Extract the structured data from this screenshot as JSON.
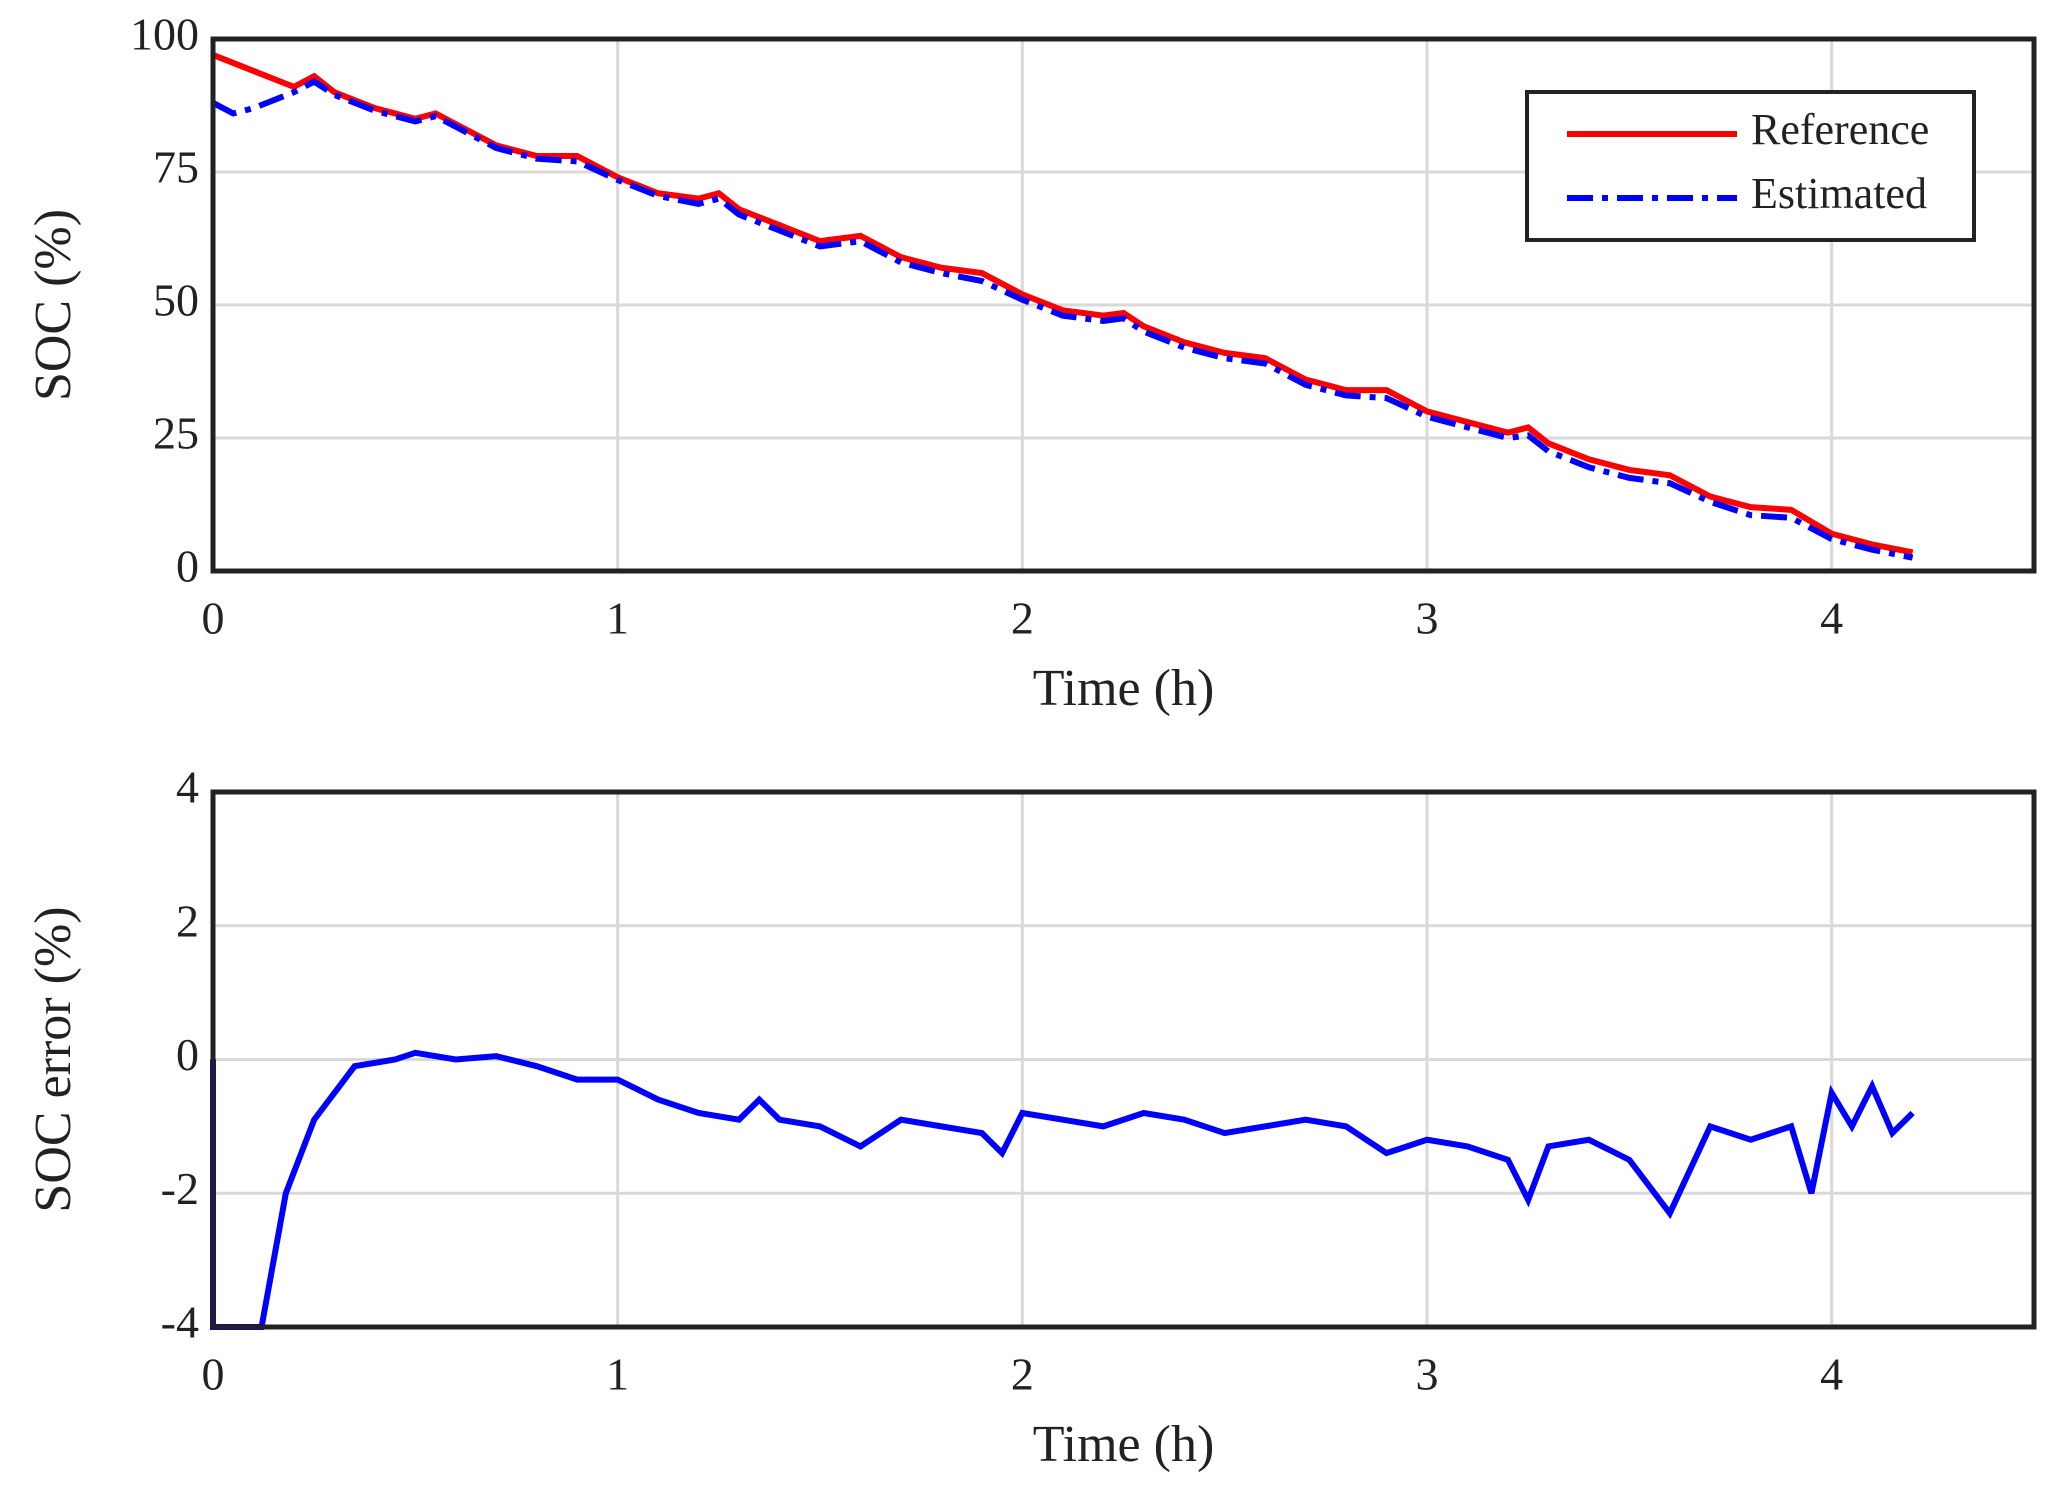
{
  "chart_data": [
    {
      "type": "line",
      "ylabel": "SOC (%)",
      "xlabel": "Time (h)",
      "xlim": [
        0,
        4.5
      ],
      "xticks": [
        0,
        1,
        2,
        3,
        4
      ],
      "ylim": [
        0,
        100
      ],
      "yticks": [
        0,
        25,
        50,
        75,
        100
      ],
      "grid": true,
      "legend": "upper right",
      "series": [
        {
          "name": "Reference",
          "color": "#ff0000",
          "dash": "solid",
          "x": [
            0,
            0.1,
            0.2,
            0.25,
            0.3,
            0.4,
            0.5,
            0.55,
            0.6,
            0.7,
            0.8,
            0.9,
            1.0,
            1.1,
            1.2,
            1.25,
            1.3,
            1.4,
            1.5,
            1.6,
            1.7,
            1.8,
            1.9,
            2.0,
            2.1,
            2.2,
            2.25,
            2.3,
            2.4,
            2.5,
            2.6,
            2.7,
            2.8,
            2.9,
            3.0,
            3.1,
            3.2,
            3.25,
            3.3,
            3.4,
            3.5,
            3.6,
            3.7,
            3.8,
            3.9,
            4.0,
            4.1,
            4.2
          ],
          "values": [
            97,
            94,
            91,
            93,
            90,
            87,
            85,
            86,
            84,
            80,
            78,
            78,
            74,
            71,
            70,
            71,
            68,
            65,
            62,
            63,
            59,
            57,
            56,
            52,
            49,
            48,
            48.5,
            46,
            43,
            41,
            40,
            36,
            34,
            34,
            30,
            28,
            26,
            27,
            24,
            21,
            19,
            18,
            14,
            12,
            11.5,
            7,
            5,
            3.5
          ]
        },
        {
          "name": "Estimated",
          "color": "#0000ff",
          "dash": "dashdot",
          "x": [
            0,
            0.05,
            0.1,
            0.2,
            0.25,
            0.3,
            0.4,
            0.5,
            0.55,
            0.6,
            0.7,
            0.8,
            0.9,
            1.0,
            1.1,
            1.2,
            1.25,
            1.3,
            1.4,
            1.5,
            1.6,
            1.7,
            1.8,
            1.9,
            2.0,
            2.1,
            2.2,
            2.25,
            2.3,
            2.4,
            2.5,
            2.6,
            2.7,
            2.8,
            2.9,
            3.0,
            3.1,
            3.2,
            3.25,
            3.3,
            3.4,
            3.5,
            3.6,
            3.7,
            3.8,
            3.9,
            4.0,
            4.1,
            4.2
          ],
          "values": [
            88,
            86,
            87,
            90,
            92,
            89.5,
            86.5,
            84.5,
            85.5,
            83.5,
            79.5,
            77.5,
            77,
            73.5,
            70.5,
            69,
            70,
            67,
            64,
            61,
            62,
            58,
            56,
            54.5,
            51,
            48,
            47,
            47.5,
            45,
            42,
            40,
            39,
            35,
            33,
            32.5,
            29,
            27,
            25,
            25.5,
            22.5,
            19.5,
            17.5,
            16.5,
            13,
            10.5,
            10,
            6,
            4,
            2.5
          ]
        }
      ]
    },
    {
      "type": "line",
      "ylabel": "SOC error (%)",
      "xlabel": "Time (h)",
      "xlim": [
        0,
        4.5
      ],
      "xticks": [
        0,
        1,
        2,
        3,
        4
      ],
      "ylim": [
        -4,
        4
      ],
      "yticks": [
        -4,
        -2,
        0,
        2,
        4
      ],
      "grid": true,
      "series": [
        {
          "color": "#0000ff",
          "dash": "solid",
          "x": [
            0,
            0,
            0.12,
            0.18,
            0.25,
            0.3,
            0.35,
            0.45,
            0.5,
            0.6,
            0.7,
            0.8,
            0.9,
            1.0,
            1.1,
            1.2,
            1.3,
            1.35,
            1.4,
            1.5,
            1.6,
            1.7,
            1.8,
            1.9,
            1.95,
            2.0,
            2.1,
            2.2,
            2.3,
            2.4,
            2.5,
            2.6,
            2.7,
            2.8,
            2.9,
            3.0,
            3.1,
            3.2,
            3.25,
            3.3,
            3.4,
            3.5,
            3.6,
            3.7,
            3.8,
            3.9,
            3.95,
            4.0,
            4.05,
            4.1,
            4.15,
            4.2
          ],
          "values": [
            0,
            -4,
            -4,
            -2,
            -0.9,
            -0.5,
            -0.1,
            0,
            0.1,
            0,
            0.05,
            -0.1,
            -0.3,
            -0.3,
            -0.6,
            -0.8,
            -0.9,
            -0.6,
            -0.9,
            -1.0,
            -1.3,
            -0.9,
            -1.0,
            -1.1,
            -1.4,
            -0.8,
            -0.9,
            -1.0,
            -0.8,
            -0.9,
            -1.1,
            -1.0,
            -0.9,
            -1.0,
            -1.4,
            -1.2,
            -1.3,
            -1.5,
            -2.1,
            -1.3,
            -1.2,
            -1.5,
            -2.3,
            -1.0,
            -1.2,
            -1.0,
            -2.0,
            -0.5,
            -1.0,
            -0.4,
            -1.1,
            -0.8
          ]
        }
      ]
    }
  ]
}
